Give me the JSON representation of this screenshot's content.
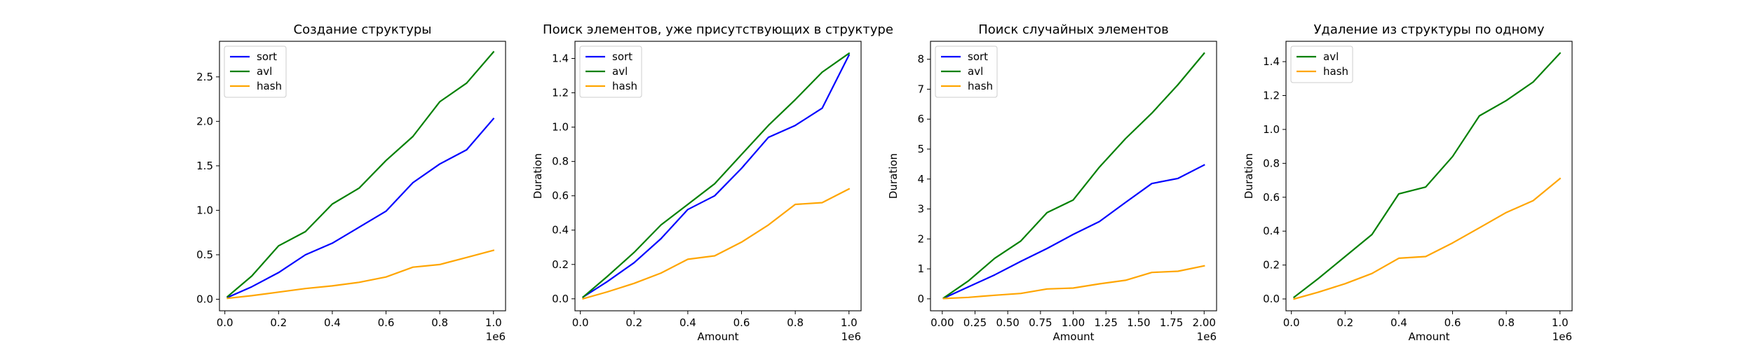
{
  "chart_data": [
    {
      "type": "line",
      "title": "Создание структуры",
      "xlabel": "",
      "ylabel": "",
      "xlim": [
        -20000,
        1045000
      ],
      "ylim": [
        -0.13,
        2.9
      ],
      "xticks": [
        0,
        0.2,
        0.4,
        0.6,
        0.8,
        1.0
      ],
      "xtick_labels": [
        "0.0",
        "0.2",
        "0.4",
        "0.6",
        "0.8",
        "1.0"
      ],
      "x_scale_label": "1e6",
      "yticks": [
        0,
        0.5,
        1.0,
        1.5,
        2.0,
        2.5
      ],
      "ytick_labels": [
        "0.0",
        "0.5",
        "1.0",
        "1.5",
        "2.0",
        "2.5"
      ],
      "legend_position": "top-left",
      "grid": false,
      "x": [
        10000,
        100000,
        200000,
        300000,
        400000,
        500000,
        600000,
        700000,
        800000,
        900000,
        1000000
      ],
      "series": [
        {
          "name": "sort",
          "color": "#0000ff",
          "values": [
            0.02,
            0.14,
            0.3,
            0.5,
            0.63,
            0.81,
            0.99,
            1.31,
            1.52,
            1.68,
            2.03
          ]
        },
        {
          "name": "avl",
          "color": "#008000",
          "values": [
            0.03,
            0.26,
            0.6,
            0.76,
            1.07,
            1.25,
            1.56,
            1.83,
            2.22,
            2.43,
            2.78
          ]
        },
        {
          "name": "hash",
          "color": "#ffa500",
          "values": [
            0.01,
            0.04,
            0.08,
            0.12,
            0.15,
            0.19,
            0.25,
            0.36,
            0.39,
            0.47,
            0.55
          ]
        }
      ]
    },
    {
      "type": "line",
      "title": "Поиск элементов, уже присутствующих в структуре",
      "xlabel": "Amount",
      "ylabel": "Duration",
      "xlim": [
        -20000,
        1045000
      ],
      "ylim": [
        -0.07,
        1.5
      ],
      "xticks": [
        0,
        0.2,
        0.4,
        0.6,
        0.8,
        1.0
      ],
      "xtick_labels": [
        "0.0",
        "0.2",
        "0.4",
        "0.6",
        "0.8",
        "1.0"
      ],
      "x_scale_label": "1e6",
      "yticks": [
        0,
        0.2,
        0.4,
        0.6,
        0.8,
        1.0,
        1.2,
        1.4
      ],
      "ytick_labels": [
        "0.0",
        "0.2",
        "0.4",
        "0.6",
        "0.8",
        "1.0",
        "1.2",
        "1.4"
      ],
      "legend_position": "top-left",
      "grid": false,
      "x": [
        10000,
        100000,
        200000,
        300000,
        400000,
        500000,
        600000,
        700000,
        800000,
        900000,
        1000000
      ],
      "series": [
        {
          "name": "sort",
          "color": "#0000ff",
          "values": [
            0.01,
            0.1,
            0.21,
            0.35,
            0.52,
            0.6,
            0.76,
            0.94,
            1.01,
            1.11,
            1.42
          ]
        },
        {
          "name": "avl",
          "color": "#008000",
          "values": [
            0.01,
            0.13,
            0.27,
            0.43,
            0.55,
            0.67,
            0.84,
            1.01,
            1.16,
            1.32,
            1.43
          ]
        },
        {
          "name": "hash",
          "color": "#ffa500",
          "values": [
            0.0,
            0.04,
            0.09,
            0.15,
            0.23,
            0.25,
            0.33,
            0.43,
            0.55,
            0.56,
            0.64
          ]
        }
      ]
    },
    {
      "type": "line",
      "title": "Поиск случайных элементов",
      "xlabel": "Amount",
      "ylabel": "Duration",
      "xlim": [
        -90000,
        2095000
      ],
      "ylim": [
        -0.4,
        8.6
      ],
      "xticks": [
        0,
        0.25,
        0.5,
        0.75,
        1.0,
        1.25,
        1.5,
        1.75,
        2.0
      ],
      "xtick_labels": [
        "0.00",
        "0.25",
        "0.50",
        "0.75",
        "1.00",
        "1.25",
        "1.50",
        "1.75",
        "2.00"
      ],
      "x_scale_label": "1e6",
      "yticks": [
        0,
        1,
        2,
        3,
        4,
        5,
        6,
        7,
        8
      ],
      "ytick_labels": [
        "0",
        "1",
        "2",
        "3",
        "4",
        "5",
        "6",
        "7",
        "8"
      ],
      "legend_position": "top-left",
      "grid": false,
      "x": [
        10000,
        200000,
        400000,
        600000,
        800000,
        1000000,
        1200000,
        1400000,
        1600000,
        1800000,
        2000000
      ],
      "series": [
        {
          "name": "sort",
          "color": "#0000ff",
          "values": [
            0.02,
            0.4,
            0.8,
            1.25,
            1.68,
            2.15,
            2.58,
            3.22,
            3.85,
            4.02,
            4.47
          ]
        },
        {
          "name": "avl",
          "color": "#008000",
          "values": [
            0.03,
            0.6,
            1.35,
            1.93,
            2.88,
            3.3,
            4.4,
            5.35,
            6.2,
            7.15,
            8.2
          ]
        },
        {
          "name": "hash",
          "color": "#ffa500",
          "values": [
            0.01,
            0.05,
            0.12,
            0.18,
            0.33,
            0.36,
            0.5,
            0.62,
            0.88,
            0.92,
            1.1
          ]
        }
      ]
    },
    {
      "type": "line",
      "title": "Удаление из структуры по одному",
      "xlabel": "Amount",
      "ylabel": "Duration",
      "xlim": [
        -20000,
        1045000
      ],
      "ylim": [
        -0.07,
        1.52
      ],
      "xticks": [
        0,
        0.2,
        0.4,
        0.6,
        0.8,
        1.0
      ],
      "xtick_labels": [
        "0.0",
        "0.2",
        "0.4",
        "0.6",
        "0.8",
        "1.0"
      ],
      "x_scale_label": "1e6",
      "yticks": [
        0,
        0.2,
        0.4,
        0.6,
        0.8,
        1.0,
        1.2,
        1.4
      ],
      "ytick_labels": [
        "0.0",
        "0.2",
        "0.4",
        "0.6",
        "0.8",
        "1.0",
        "1.2",
        "1.4"
      ],
      "legend_position": "top-left",
      "grid": false,
      "x": [
        10000,
        100000,
        200000,
        300000,
        400000,
        500000,
        600000,
        700000,
        800000,
        900000,
        1000000
      ],
      "series": [
        {
          "name": "avl",
          "color": "#008000",
          "values": [
            0.01,
            0.12,
            0.25,
            0.38,
            0.62,
            0.66,
            0.84,
            1.08,
            1.17,
            1.28,
            1.45
          ]
        },
        {
          "name": "hash",
          "color": "#ffa500",
          "values": [
            0.0,
            0.04,
            0.09,
            0.15,
            0.24,
            0.25,
            0.33,
            0.42,
            0.51,
            0.58,
            0.71
          ]
        }
      ]
    }
  ]
}
